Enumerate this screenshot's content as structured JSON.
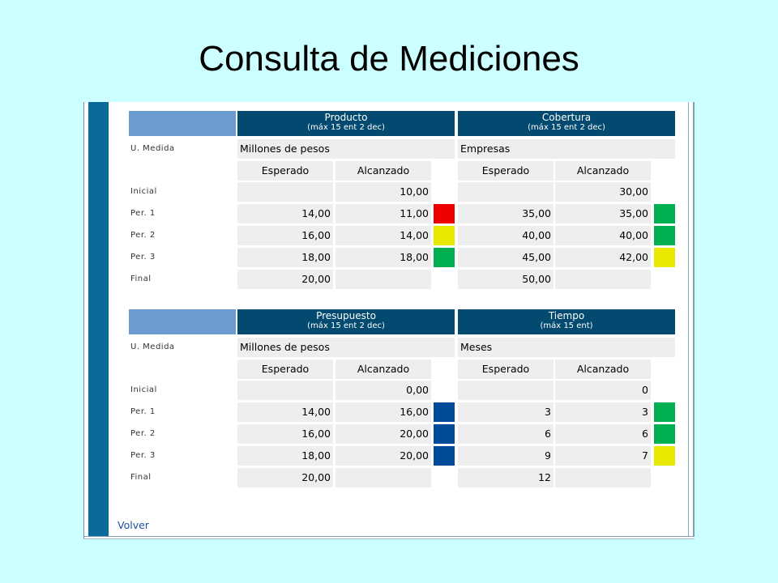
{
  "title": "Consulta de Mediciones",
  "colors": {
    "red": "#ee0000",
    "yellow": "#e8e800",
    "green": "#00b050",
    "blue": "#004a9a",
    "header": "#024a70"
  },
  "sections": [
    {
      "left": {
        "title": "Producto",
        "subtitle": "(máx 15 ent 2 dec)",
        "unit": "Millones de pesos"
      },
      "right": {
        "title": "Cobertura",
        "subtitle": "(máx 15 ent 2 dec)",
        "unit": "Empresas"
      },
      "labels": {
        "unit": "U. Medida",
        "initial": "Inicial",
        "p1": "Per. 1",
        "p2": "Per. 2",
        "p3": "Per. 3",
        "final": "Final"
      },
      "cols": {
        "left_expected": "Esperado",
        "left_reached": "Alcanzado",
        "right_expected": "Esperado",
        "right_reached": "Alcanzado"
      },
      "rows": [
        {
          "le": "",
          "lr": "10,00",
          "li": "",
          "re": "",
          "rr": "30,00",
          "ri": ""
        },
        {
          "le": "14,00",
          "lr": "11,00",
          "li": "red",
          "re": "35,00",
          "rr": "35,00",
          "ri": "green"
        },
        {
          "le": "16,00",
          "lr": "14,00",
          "li": "yellow",
          "re": "40,00",
          "rr": "40,00",
          "ri": "green"
        },
        {
          "le": "18,00",
          "lr": "18,00",
          "li": "green",
          "re": "45,00",
          "rr": "42,00",
          "ri": "yellow"
        },
        {
          "le": "20,00",
          "lr": "",
          "li": "",
          "re": "50,00",
          "rr": "",
          "ri": ""
        }
      ]
    },
    {
      "left": {
        "title": "Presupuesto",
        "subtitle": "(máx 15 ent 2 dec)",
        "unit": "Millones de pesos"
      },
      "right": {
        "title": "Tiempo",
        "subtitle": "(máx 15 ent)",
        "unit": "Meses"
      },
      "labels": {
        "unit": "U. Medida",
        "initial": "Inicial",
        "p1": "Per. 1",
        "p2": "Per. 2",
        "p3": "Per. 3",
        "final": "Final"
      },
      "cols": {
        "left_expected": "Esperado",
        "left_reached": "Alcanzado",
        "right_expected": "Esperado",
        "right_reached": "Alcanzado"
      },
      "rows": [
        {
          "le": "",
          "lr": "0,00",
          "li": "",
          "re": "",
          "rr": "0",
          "ri": ""
        },
        {
          "le": "14,00",
          "lr": "16,00",
          "li": "blue",
          "re": "3",
          "rr": "3",
          "ri": "green"
        },
        {
          "le": "16,00",
          "lr": "20,00",
          "li": "blue",
          "re": "6",
          "rr": "6",
          "ri": "green"
        },
        {
          "le": "18,00",
          "lr": "20,00",
          "li": "blue",
          "re": "9",
          "rr": "7",
          "ri": "yellow"
        },
        {
          "le": "20,00",
          "lr": "",
          "li": "",
          "re": "12",
          "rr": "",
          "ri": ""
        }
      ]
    }
  ],
  "volver": "Volver"
}
